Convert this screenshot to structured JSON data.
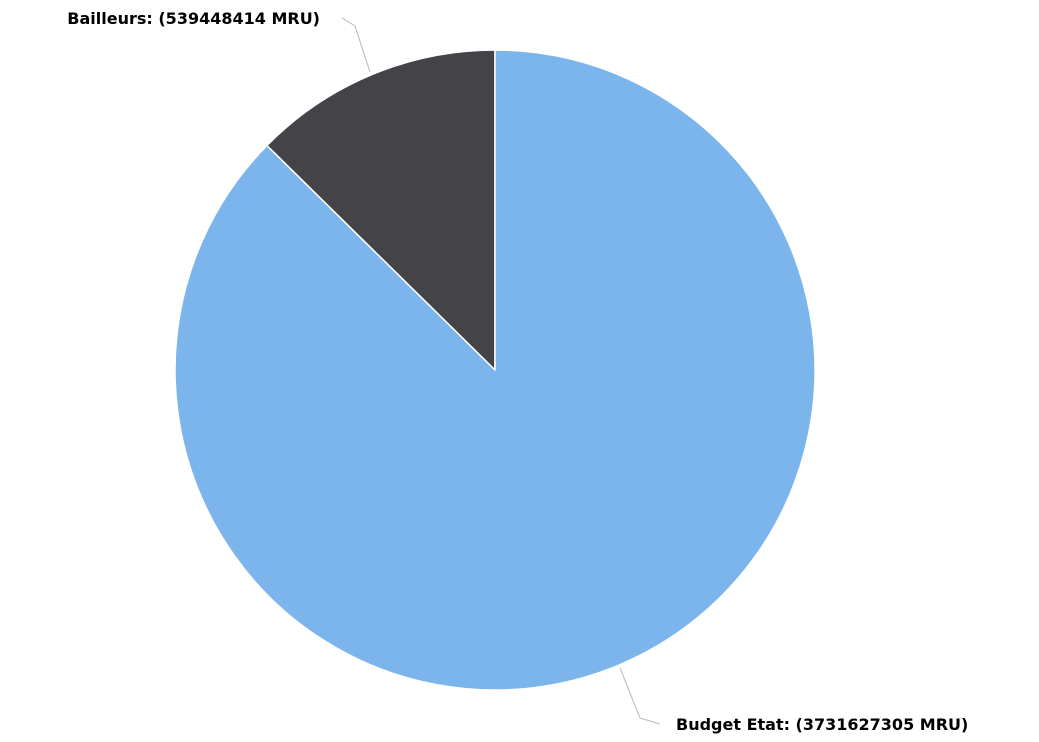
{
  "chart_data": {
    "type": "pie",
    "unit": "MRU",
    "slices": [
      {
        "name": "Bailleurs",
        "value": 539448414,
        "label": "Bailleurs: (539448414 MRU)",
        "color": "#434348"
      },
      {
        "name": "Budget Etat",
        "value": 3731627305,
        "label": "Budget Etat: (3731627305 MRU)",
        "color": "#7cb5ec"
      }
    ],
    "start_angle": "12 o'clock",
    "direction": "counterclockwise",
    "data_labels": "outside with connectors",
    "legend": "none"
  }
}
